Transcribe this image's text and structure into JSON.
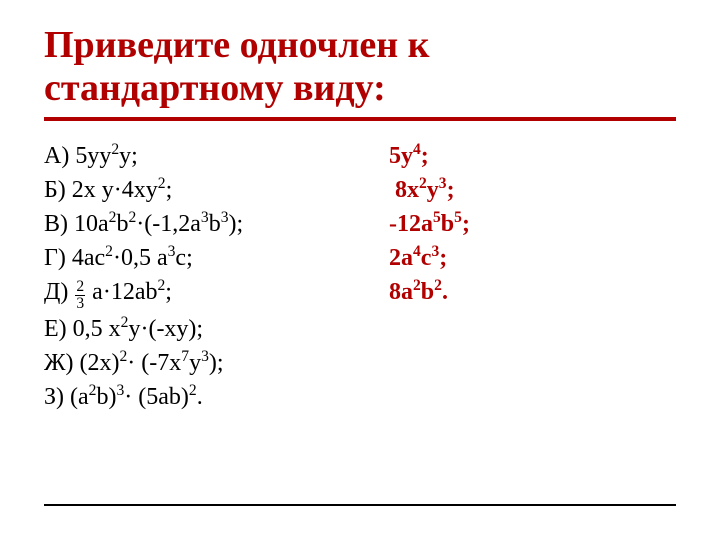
{
  "colors": {
    "accent": "#b00000",
    "text": "#000000",
    "background": "#ffffff"
  },
  "title": "Приведите одночлен к стандартному виду:",
  "items": [
    {
      "label": "А)",
      "problem_html": "5yy<sup>2</sup>y;",
      "answer_html": "5y<sup>4</sup>;"
    },
    {
      "label": "Б)",
      "problem_html": "2x y·4xy<sup>2</sup>;",
      "answer_html": "&nbsp;8x<sup>2</sup>y<sup>3</sup>;"
    },
    {
      "label": "В)",
      "problem_html": "10a<sup>2</sup>b<sup>2</sup>·(-1,2a<sup>3</sup>b<sup>3</sup>);",
      "answer_html": "-12a<sup>5</sup>b<sup>5</sup>;"
    },
    {
      "label": "Г)",
      "problem_html": "4ac<sup>2</sup>·0,5 a<sup>3</sup>c;",
      "answer_html": "2a<sup>4</sup>c<sup>3</sup>;"
    },
    {
      "label": "Д)",
      "problem_html": "<span class='frac'><span class='num'>2</span><span class='den'>3</span></span> a·12ab<sup>2</sup>;",
      "answer_html": "8a<sup>2</sup>b<sup>2</sup>."
    },
    {
      "label": "Е)",
      "problem_html": "0,5 x<sup>2</sup>y·(-xy);",
      "answer_html": ""
    },
    {
      "label": "Ж)",
      "problem_html": "(2x)<sup>2</sup>· (-7x<sup>7</sup>y<sup>3</sup>);",
      "answer_html": ""
    },
    {
      "label": "З)",
      "problem_html": "(a<sup>2</sup>b)<sup>3</sup>· (5ab)<sup>2</sup>.",
      "answer_html": ""
    }
  ]
}
